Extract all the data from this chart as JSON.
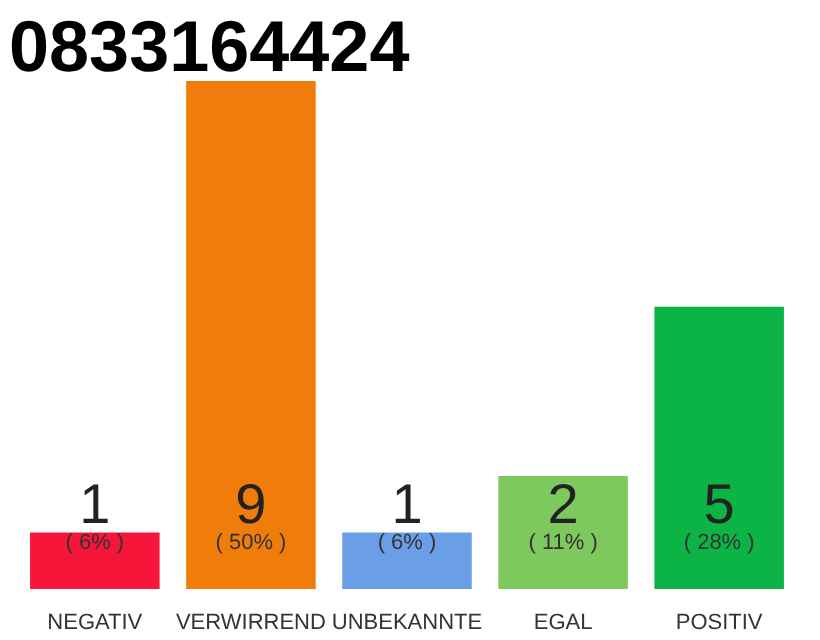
{
  "chart_data": {
    "type": "bar",
    "title": "0833164424",
    "categories": [
      "NEGATIV",
      "VERWIRREND",
      "UNBEKANNTE",
      "EGAL",
      "POSITIV"
    ],
    "values": [
      1,
      9,
      1,
      2,
      5
    ],
    "colors": [
      "#f5163a",
      "#f07d0a",
      "#6a9fe8",
      "#7dc95e",
      "#0cb446"
    ],
    "data_labels": true,
    "annotations": [
      "( 6% )",
      "( 50% )",
      "( 6% )",
      "( 11% )",
      "( 28% )"
    ]
  }
}
